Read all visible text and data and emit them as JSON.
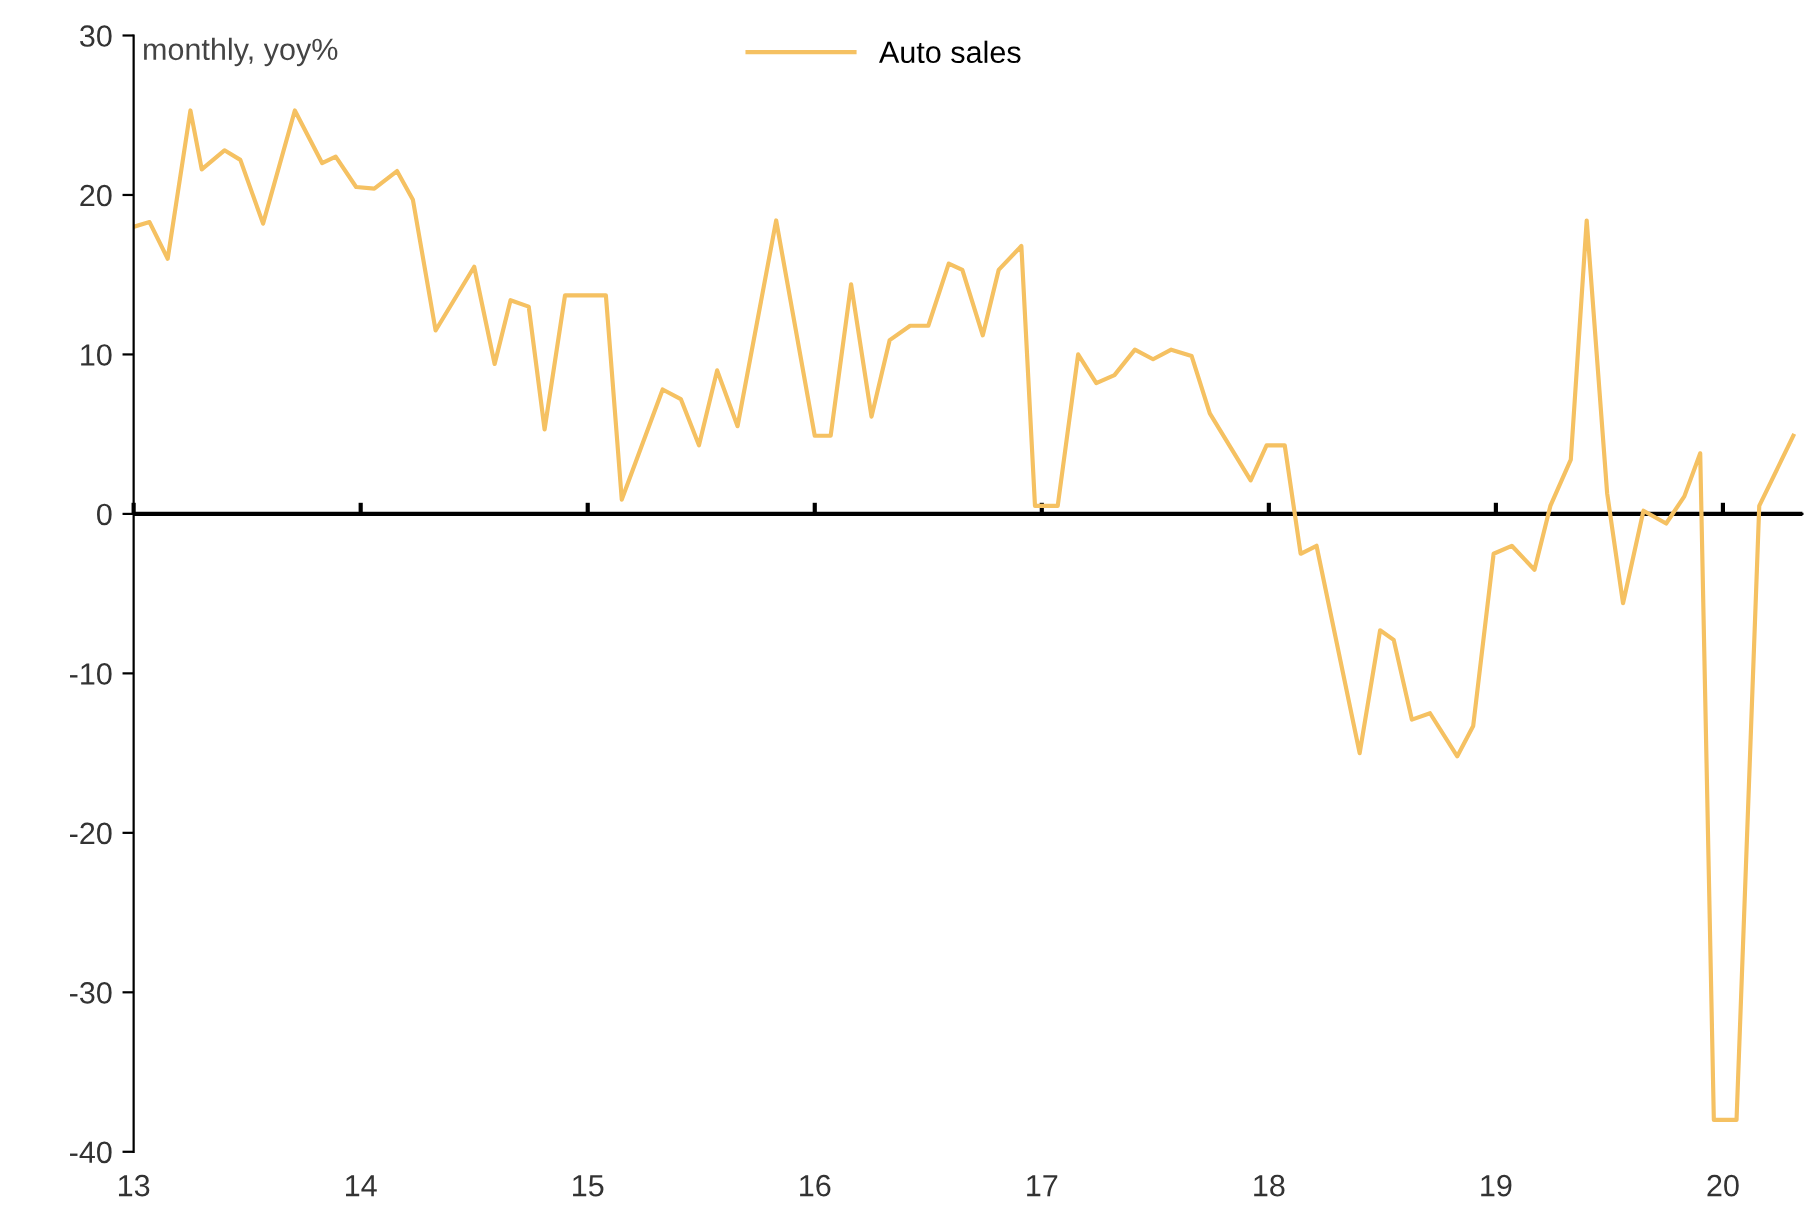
{
  "chart_data": {
    "type": "line",
    "annotations": [
      "monthly, yoy%"
    ],
    "x": [
      13.0,
      13.07,
      13.15,
      13.25,
      13.3,
      13.4,
      13.47,
      13.57,
      13.71,
      13.83,
      13.89,
      13.98,
      14.06,
      14.16,
      14.23,
      14.33,
      14.5,
      14.59,
      14.66,
      14.74,
      14.81,
      14.9,
      15.08,
      15.15,
      15.33,
      15.41,
      15.49,
      15.57,
      15.66,
      15.83,
      16.0,
      16.07,
      16.16,
      16.25,
      16.33,
      16.42,
      16.5,
      16.59,
      16.65,
      16.74,
      16.81,
      16.91,
      16.97,
      17.07,
      17.16,
      17.24,
      17.32,
      17.41,
      17.49,
      17.57,
      17.66,
      17.74,
      17.92,
      17.99,
      18.07,
      18.14,
      18.21,
      18.4,
      18.49,
      18.55,
      18.63,
      18.71,
      18.83,
      18.9,
      18.99,
      19.07,
      19.17,
      19.24,
      19.33,
      19.4,
      19.49,
      19.56,
      19.65,
      19.75,
      19.83,
      19.9,
      19.96,
      20.06,
      20.16,
      20.31
    ],
    "series": [
      {
        "name": "Auto sales",
        "color": "#f5c162",
        "values": [
          18,
          18.3,
          16,
          25.3,
          21.6,
          22.8,
          22.2,
          18.2,
          25.3,
          22,
          22.4,
          20.5,
          20.4,
          21.5,
          19.7,
          11.5,
          15.5,
          9.4,
          13.4,
          13,
          5.3,
          13.7,
          13.7,
          0.9,
          7.8,
          7.2,
          4.3,
          9,
          5.5,
          18.4,
          4.9,
          4.9,
          14.4,
          6.1,
          10.9,
          11.8,
          11.8,
          15.7,
          15.3,
          11.2,
          15.3,
          16.8,
          0.5,
          0.5,
          10,
          8.2,
          8.7,
          10.3,
          9.7,
          10.3,
          9.9,
          6.3,
          2.1,
          4.3,
          4.3,
          -2.5,
          -2,
          -15,
          -7.3,
          -7.9,
          -12.9,
          -12.5,
          -15.2,
          -13.3,
          -2.5,
          -2,
          -3.5,
          0.5,
          3.4,
          18.4,
          1.3,
          -5.6,
          0.2,
          -0.6,
          1.1,
          3.8,
          -38,
          -38,
          0.5,
          4.9
        ]
      }
    ],
    "xlim": [
      13,
      20.35
    ],
    "xticks": [
      13,
      14,
      15,
      16,
      17,
      18,
      19,
      20
    ],
    "ylim": [
      -40,
      30
    ],
    "yticks": [
      -40,
      -30,
      -20,
      -10,
      0,
      10,
      20,
      30
    ],
    "ref_lines": [
      {
        "axis": "y",
        "value": 0,
        "color": "#000000",
        "line_style": "solid"
      }
    ],
    "legend": "top",
    "marker": "none",
    "line_style": "solid"
  }
}
